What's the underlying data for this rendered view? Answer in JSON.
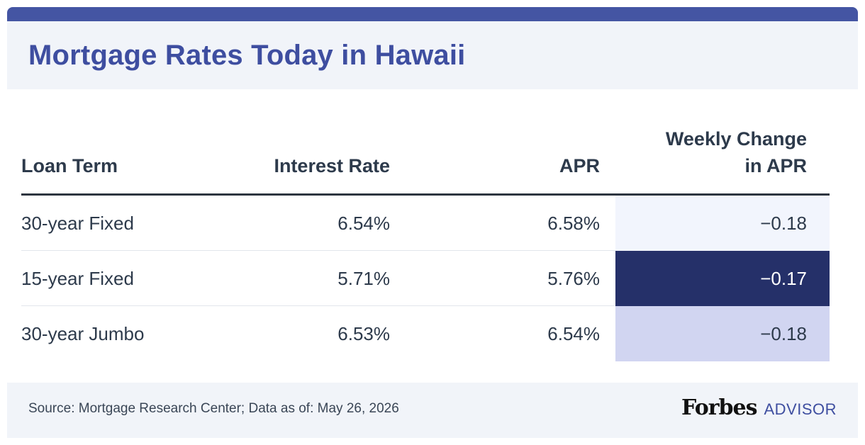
{
  "title": "Mortgage Rates Today in Hawaii",
  "chart_data": {
    "type": "table",
    "columns": [
      "Loan Term",
      "Interest Rate",
      "APR",
      "Weekly Change in APR"
    ],
    "header_lines": {
      "weekly_change": [
        "Weekly Change",
        "in APR"
      ]
    },
    "rows": [
      {
        "loan_term": "30-year Fixed",
        "interest_rate": "6.54%",
        "apr": "6.58%",
        "weekly_change": "−0.18",
        "highlight_color": "#f2f5fd",
        "text_color": "#2d3a4b"
      },
      {
        "loan_term": "15-year Fixed",
        "interest_rate": "5.71%",
        "apr": "5.76%",
        "weekly_change": "−0.17",
        "highlight_color": "#253069",
        "text_color": "#ffffff"
      },
      {
        "loan_term": "30-year Jumbo",
        "interest_rate": "6.53%",
        "apr": "6.54%",
        "weekly_change": "−0.18",
        "highlight_color": "#d1d5f1",
        "text_color": "#2d3a4b"
      }
    ]
  },
  "footer": {
    "source": "Source: Mortgage Research Center; Data as of: May 26, 2026",
    "logo_text": "Forbes",
    "logo_subtext": "ADVISOR"
  },
  "colors": {
    "accent": "#4455a3",
    "title": "#3e4ea0",
    "panel_bg": "#f1f4f9"
  }
}
